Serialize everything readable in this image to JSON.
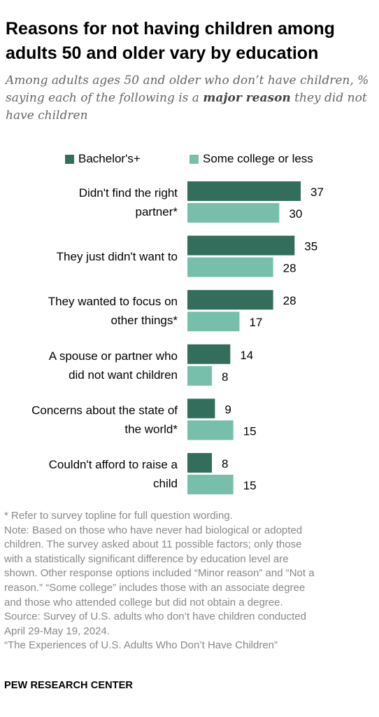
{
  "header": {
    "title": "Reasons for not having children among adults 50 and older vary by education",
    "subtitle_pre": "Among adults ages 50 and older who don’t have children, % saying each of the following is a ",
    "subtitle_bold": "major reason",
    "subtitle_post": " they did not have children"
  },
  "colors": {
    "bachelors": "#336e5c",
    "some_college": "#78bfab"
  },
  "chart_data": {
    "type": "bar",
    "orientation": "horizontal",
    "categories": [
      [
        "Didn't find the right",
        "partner*"
      ],
      [
        "They just didn't want to"
      ],
      [
        "They wanted to focus on",
        "other things*"
      ],
      [
        "A spouse or partner who",
        "did not want children"
      ],
      [
        "Concerns about the state of",
        "the world*"
      ],
      [
        "Couldn't afford to raise a",
        "child"
      ]
    ],
    "series": [
      {
        "name": "Bachelor's+",
        "values": [
          37,
          35,
          28,
          14,
          9,
          8
        ]
      },
      {
        "name": "Some college or less",
        "values": [
          30,
          28,
          17,
          8,
          15,
          15
        ]
      }
    ],
    "xlim": [
      0,
      37
    ],
    "grid": false,
    "legend": "top"
  },
  "footnotes": {
    "asterisk": "* Refer to survey topline for full question wording.",
    "note_lines": [
      "Note: Based on those who have never had biological or adopted",
      "children. The survey asked about 11 possible factors; only those",
      "with a statistically significant difference by education level are",
      "shown. Other response options included “Minor reason” and “Not a",
      "reason.” “Some college” includes those with an associate degree",
      "and those who attended college but did not obtain a degree."
    ],
    "source_lines": [
      "Source: Survey of U.S. adults who don’t have children conducted",
      "April 29-May 19, 2024."
    ],
    "report": "“The Experiences of U.S. Adults Who Don’t Have Children”"
  },
  "brand": "PEW RESEARCH CENTER"
}
